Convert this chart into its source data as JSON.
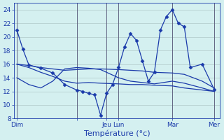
{
  "xlabel": "Température (°c)",
  "bg_color": "#d4f0f0",
  "grid_color": "#b0c8c8",
  "line_color": "#1a3aaa",
  "vline_color": "#555577",
  "ylim": [
    8,
    25
  ],
  "yticks": [
    8,
    10,
    12,
    14,
    16,
    18,
    20,
    22,
    24
  ],
  "day_tick_positions": [
    0,
    10,
    15,
    17,
    26,
    33
  ],
  "day_labels": [
    "Dim",
    "",
    "Jeu",
    "Lun",
    "Mar",
    "Mer"
  ],
  "vline_positions": [
    0,
    10,
    15,
    17,
    26,
    33
  ],
  "xlim": [
    -0.5,
    34
  ],
  "series": [
    {
      "x": [
        0,
        1,
        2,
        4,
        6,
        8,
        10,
        11,
        12,
        13,
        14,
        15,
        16,
        17,
        18,
        19,
        20,
        21,
        22,
        23,
        24,
        25,
        26,
        27,
        28,
        29,
        31,
        33
      ],
      "y": [
        21,
        18.2,
        15.9,
        15.4,
        14.7,
        13.0,
        12.2,
        12.0,
        11.7,
        11.5,
        8.5,
        11.7,
        13.0,
        15.5,
        18.5,
        20.5,
        19.5,
        16.5,
        13.5,
        14.8,
        21.0,
        23.0,
        24.0,
        22.0,
        21.5,
        15.5,
        16.0,
        12.3
      ],
      "marker": true
    },
    {
      "x": [
        0,
        2,
        4,
        6,
        8,
        10,
        12,
        14,
        17,
        19,
        21,
        23,
        26,
        28,
        31,
        33
      ],
      "y": [
        16.0,
        15.8,
        15.5,
        15.3,
        15.1,
        15.2,
        15.3,
        15.3,
        15.2,
        15.1,
        15.0,
        14.8,
        14.7,
        14.5,
        13.5,
        12.5
      ],
      "marker": false
    },
    {
      "x": [
        0,
        2,
        4,
        6,
        8,
        10,
        12,
        14,
        17,
        19,
        21,
        23,
        26,
        28,
        31,
        33
      ],
      "y": [
        14.0,
        13.0,
        12.5,
        13.5,
        15.3,
        15.5,
        15.4,
        15.2,
        14.0,
        13.5,
        13.3,
        13.1,
        13.5,
        13.2,
        12.5,
        12.0
      ],
      "marker": false
    },
    {
      "x": [
        0,
        2,
        4,
        6,
        8,
        10,
        12,
        14,
        17,
        19,
        21,
        23,
        26,
        28,
        31,
        33
      ],
      "y": [
        16.0,
        15.5,
        14.8,
        14.2,
        13.5,
        13.2,
        13.3,
        13.2,
        13.1,
        13.0,
        13.0,
        12.9,
        12.8,
        12.5,
        12.2,
        12.0
      ],
      "marker": false
    }
  ],
  "marker_style": "D",
  "marker_size": 2.5,
  "linewidth": 0.9,
  "tick_fontsize": 6.5,
  "xlabel_fontsize": 8
}
